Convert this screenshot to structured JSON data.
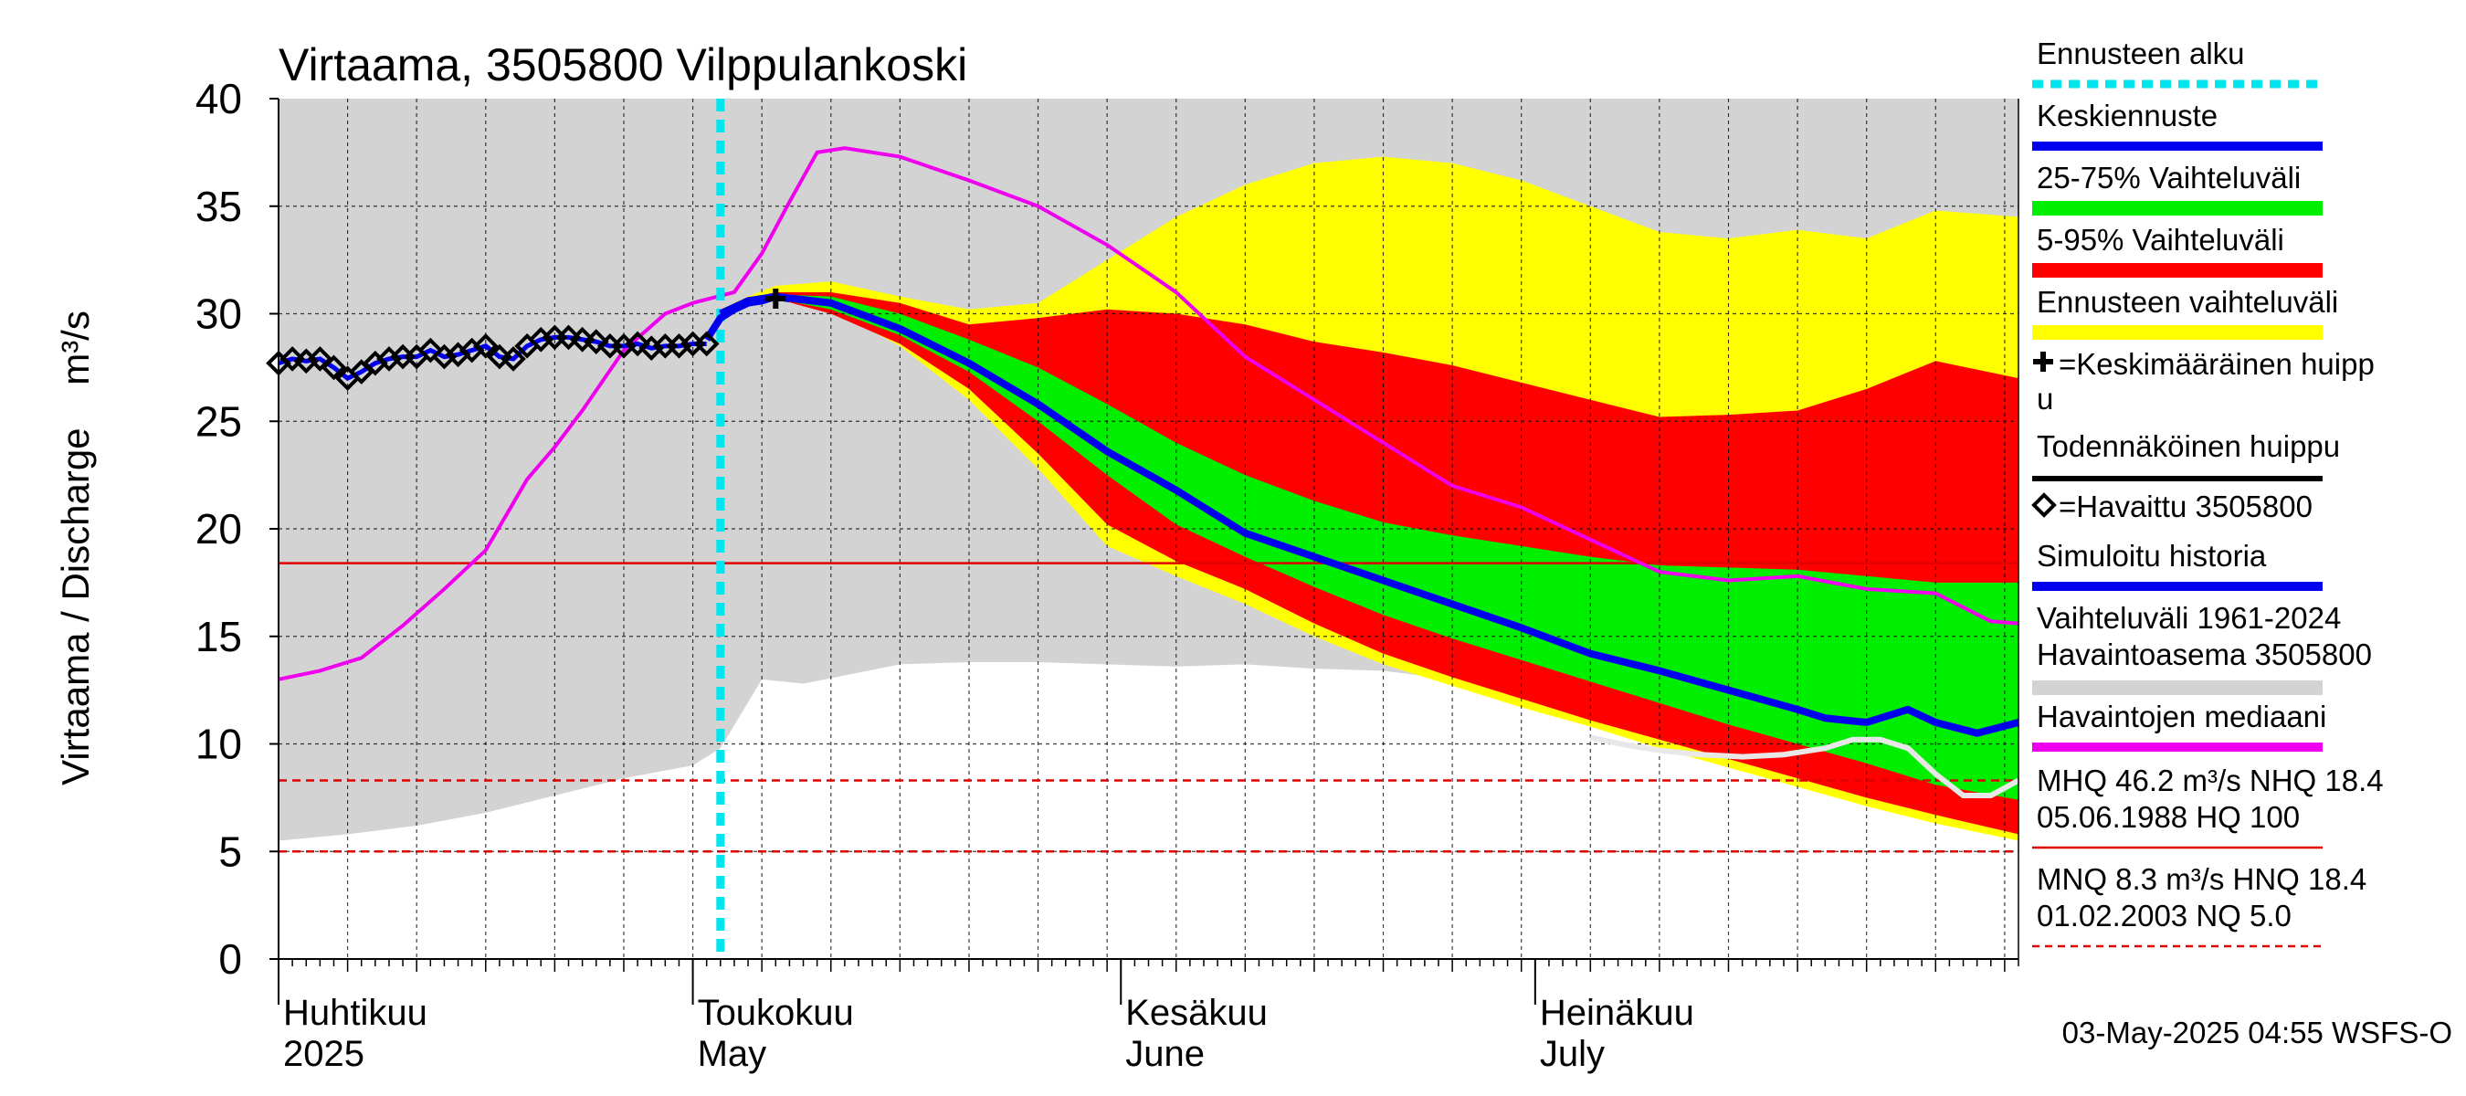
{
  "chart_data": {
    "type": "area",
    "title": "Virtaama, 3505800 Vilppulankoski",
    "ylabel": "Virtaama / Discharge    m³/s",
    "ylim": [
      0,
      40
    ],
    "yticks": [
      0,
      5,
      10,
      15,
      20,
      25,
      30,
      35,
      40
    ],
    "xlim": [
      0,
      126
    ],
    "month_labels": [
      {
        "x": 0,
        "line1": "Huhtikuu",
        "line2": "2025"
      },
      {
        "x": 30,
        "line1": "Toukokuu",
        "line2": "May"
      },
      {
        "x": 61,
        "line1": "Kesäkuu",
        "line2": "June"
      },
      {
        "x": 91,
        "line1": "Heinäkuu",
        "line2": "July"
      }
    ],
    "forecast_start_x": 32,
    "reference_lines": [
      {
        "value": 18.4,
        "style": "solid",
        "color": "#e00000"
      },
      {
        "value": 8.3,
        "style": "dashed",
        "color": "#e00000"
      },
      {
        "value": 5.0,
        "style": "dashed",
        "color": "#e00000"
      }
    ],
    "series": {
      "range_1961_2024": {
        "x": [
          0,
          5,
          10,
          15,
          20,
          25,
          30,
          32,
          35,
          38,
          45,
          50,
          55,
          60,
          65,
          70,
          75,
          80,
          85,
          90,
          95,
          100,
          105,
          110,
          115,
          120,
          126
        ],
        "upper": [
          40,
          40,
          40,
          40,
          40,
          40,
          40,
          40,
          40,
          40,
          40,
          40,
          40,
          40,
          40,
          40,
          40,
          40,
          40,
          40,
          40,
          40,
          40,
          40,
          40,
          40,
          40
        ],
        "lower": [
          5.5,
          5.8,
          6.2,
          6.8,
          7.6,
          8.4,
          9.0,
          9.8,
          13.0,
          12.8,
          13.7,
          13.8,
          13.8,
          13.7,
          13.6,
          13.7,
          13.5,
          13.4,
          13.0,
          12.2,
          11.5,
          10.4,
          9.6,
          9.0,
          8.6,
          8.2,
          8.0
        ]
      },
      "ennusteen_vaihteluvali": {
        "x": [
          32,
          34,
          36,
          40,
          45,
          50,
          55,
          60,
          65,
          70,
          75,
          80,
          85,
          90,
          95,
          100,
          105,
          110,
          115,
          120,
          126
        ],
        "upper": [
          30.2,
          30.8,
          31.3,
          31.5,
          30.8,
          30.2,
          30.5,
          32.5,
          34.5,
          36.0,
          37.0,
          37.3,
          37.0,
          36.2,
          35.0,
          33.8,
          33.5,
          33.9,
          33.5,
          34.8,
          34.5
        ],
        "lower": [
          30.0,
          30.6,
          30.8,
          30.2,
          28.5,
          26.0,
          22.8,
          19.2,
          17.8,
          16.5,
          15.0,
          13.7,
          12.7,
          11.7,
          10.8,
          9.8,
          8.9,
          8.0,
          7.1,
          6.3,
          5.5
        ]
      },
      "range_5_95": {
        "x": [
          32,
          34,
          36,
          40,
          45,
          50,
          55,
          60,
          65,
          70,
          75,
          80,
          85,
          90,
          95,
          100,
          105,
          110,
          115,
          120,
          126
        ],
        "upper": [
          30.2,
          30.7,
          31.0,
          31.0,
          30.5,
          29.5,
          29.8,
          30.2,
          30.0,
          29.5,
          28.7,
          28.2,
          27.6,
          26.8,
          26.0,
          25.2,
          25.3,
          25.5,
          26.5,
          27.8,
          27.0
        ],
        "lower": [
          30.0,
          30.5,
          30.7,
          30.0,
          28.6,
          26.5,
          23.5,
          20.2,
          18.5,
          17.2,
          15.6,
          14.2,
          13.1,
          12.1,
          11.1,
          10.2,
          9.3,
          8.4,
          7.5,
          6.7,
          5.8
        ]
      },
      "range_25_75": {
        "x": [
          32,
          34,
          36,
          40,
          45,
          50,
          55,
          60,
          65,
          70,
          75,
          80,
          85,
          90,
          95,
          100,
          105,
          110,
          115,
          120,
          126
        ],
        "upper": [
          30.1,
          30.6,
          30.9,
          30.8,
          30.0,
          28.8,
          27.5,
          25.8,
          24.0,
          22.5,
          21.3,
          20.3,
          19.7,
          19.2,
          18.7,
          18.3,
          18.2,
          18.1,
          17.8,
          17.5,
          17.5
        ],
        "lower": [
          30.0,
          30.5,
          30.7,
          30.2,
          29.0,
          27.3,
          25.0,
          22.5,
          20.2,
          18.7,
          17.3,
          16.0,
          14.9,
          13.9,
          12.9,
          11.9,
          10.9,
          10.0,
          9.1,
          8.1,
          7.4
        ]
      },
      "keskiennuste": {
        "x": [
          32,
          34,
          36,
          40,
          45,
          50,
          55,
          60,
          65,
          70,
          75,
          80,
          85,
          90,
          95,
          100,
          105,
          110,
          112,
          115,
          118,
          120,
          123,
          126
        ],
        "y": [
          30.0,
          30.6,
          30.8,
          30.5,
          29.3,
          27.7,
          25.8,
          23.6,
          21.8,
          19.8,
          18.7,
          17.6,
          16.5,
          15.4,
          14.2,
          13.4,
          12.5,
          11.6,
          11.2,
          11.0,
          11.6,
          11.0,
          10.5,
          11.0
        ]
      },
      "observed_median": {
        "x": [
          0,
          3,
          6,
          9,
          12,
          15,
          18,
          20,
          22,
          25,
          28,
          30,
          33,
          35,
          37,
          39,
          41,
          45,
          50,
          55,
          60,
          65,
          70,
          75,
          80,
          85,
          90,
          95,
          100,
          105,
          110,
          115,
          120,
          124,
          126
        ],
        "y": [
          13.0,
          13.4,
          14.0,
          15.5,
          17.2,
          19.0,
          22.3,
          23.8,
          25.5,
          28.3,
          30.0,
          30.5,
          31.0,
          32.8,
          35.2,
          37.5,
          37.7,
          37.3,
          36.2,
          35.0,
          33.2,
          31.0,
          28.0,
          26.0,
          24.0,
          22.0,
          21.0,
          19.5,
          18.0,
          17.6,
          17.8,
          17.2,
          17.0,
          15.7,
          15.6
        ]
      },
      "havaittu": {
        "x": [
          0,
          1,
          2,
          3,
          4,
          5,
          6,
          7,
          8,
          9,
          10,
          11,
          12,
          13,
          14,
          15,
          16,
          17,
          18,
          19,
          20,
          21,
          22,
          23,
          24,
          25,
          26,
          27,
          28,
          29,
          30,
          31
        ],
        "y": [
          27.7,
          27.9,
          27.8,
          27.9,
          27.5,
          27.0,
          27.3,
          27.7,
          27.9,
          28.0,
          28.0,
          28.3,
          28.0,
          28.1,
          28.3,
          28.5,
          28.0,
          27.9,
          28.5,
          28.8,
          28.9,
          28.9,
          28.8,
          28.7,
          28.5,
          28.5,
          28.6,
          28.4,
          28.5,
          28.5,
          28.6,
          28.6
        ]
      },
      "simuloitu": {
        "x": [
          31,
          32,
          33,
          34,
          35,
          36,
          37
        ],
        "y": [
          28.8,
          29.8,
          30.2,
          30.5,
          30.6,
          30.8,
          30.7
        ]
      },
      "simulated_extension": {
        "x": [
          95,
          98,
          100,
          103,
          106,
          109,
          112,
          114,
          116,
          118,
          120,
          122,
          124,
          126
        ],
        "y": [
          10.3,
          9.9,
          9.7,
          9.5,
          9.4,
          9.5,
          9.8,
          10.2,
          10.2,
          9.8,
          8.6,
          7.6,
          7.6,
          8.3
        ]
      },
      "keskimaarainen_huippu": {
        "x": 36,
        "y": 30.7
      }
    },
    "legend": [
      {
        "label": "Ennusteen alku",
        "color": "#00e5ee",
        "style": "dotted"
      },
      {
        "label": "Keskiennuste",
        "color": "#0000ee",
        "style": "line"
      },
      {
        "label": "25-75% Vaihteluväli",
        "color": "#00ee00",
        "style": "band"
      },
      {
        "label": "5-95% Vaihteluväli",
        "color": "#ff0000",
        "style": "band"
      },
      {
        "label": "Ennusteen vaihteluväli",
        "color": "#ffff00",
        "style": "band"
      },
      {
        "label": "=Keskimääräinen huipp",
        "label2": "u",
        "color": "#000000",
        "style": "plus"
      },
      {
        "label": "Todennäköinen huippu",
        "color": "#000000",
        "style": "line"
      },
      {
        "label": "=Havaittu 3505800",
        "color": "#000000",
        "style": "diamond"
      },
      {
        "label": "Simuloitu historia",
        "color": "#0000ee",
        "style": "line"
      },
      {
        "label": "Vaihteluväli 1961-2024",
        "label2": " Havaintoasema 3505800",
        "color": "#d3d3d3",
        "style": "band"
      },
      {
        "label": "Havaintojen mediaani",
        "color": "#ee00ee",
        "style": "line"
      }
    ],
    "stats": [
      {
        "line1": "MHQ 46.2 m³/s NHQ 18.4",
        "line2": "05.06.1988 HQ  100",
        "color": "#e00000",
        "style": "solid"
      },
      {
        "line1": "MNQ  8.3 m³/s HNQ 18.4",
        "line2": "01.02.2003 NQ  5.0",
        "color": "#e00000",
        "style": "dashed"
      }
    ],
    "footer": "03-May-2025 04:55 WSFS-O"
  }
}
